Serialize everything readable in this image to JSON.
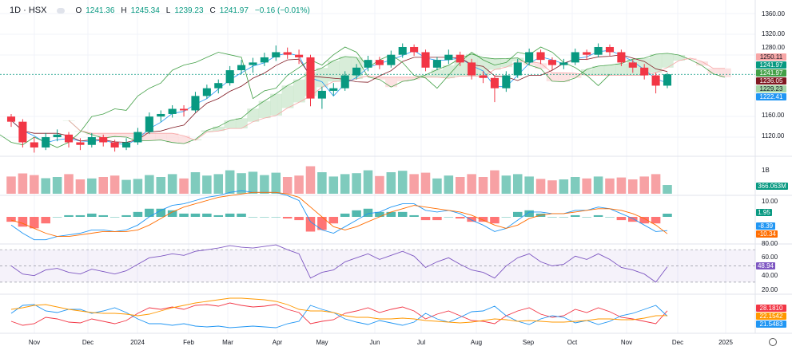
{
  "header": {
    "interval": "1D",
    "exchange": "HSX",
    "o_label": "O",
    "o": "1241.36",
    "h_label": "H",
    "h": "1245.34",
    "l_label": "L",
    "l": "1239.23",
    "c_label": "C",
    "c": "1241.97",
    "change": "−0.16 (−0.01%)"
  },
  "price_axis": {
    "ticks": [
      "1360.00",
      "1320.00",
      "1280.00",
      "1160.00",
      "1120.00"
    ]
  },
  "price_tags": [
    {
      "value": "1250.11",
      "color": "#f7a6a6",
      "text": "#131722"
    },
    {
      "value": "1241.97",
      "color": "#089981",
      "text": "#ffffff"
    },
    {
      "value": "1241.97",
      "color": "#43a047",
      "text": "#ffffff"
    },
    {
      "value": "1236.05",
      "color": "#801922",
      "text": "#ffffff"
    },
    {
      "value": "1229.23",
      "color": "#a5d6a7",
      "text": "#131722"
    },
    {
      "value": "1222.41",
      "color": "#2196f3",
      "text": "#ffffff"
    }
  ],
  "volume": {
    "tick": "1B",
    "last": "366.063M",
    "up_color": "#7fcbbd",
    "down_color": "#f7a1a4"
  },
  "macd": {
    "tick": "10.00",
    "hist_label": "1.95",
    "macd_label": "-8.39",
    "signal_label": "-10.34",
    "macd_color": "#2196f3",
    "signal_color": "#ff6d00"
  },
  "rsi": {
    "ticks": [
      "80.00",
      "60.00",
      "40.00",
      "20.00"
    ],
    "last": "48.94",
    "color": "#7e57c2",
    "upper": 70,
    "lower": 30,
    "mid": 50
  },
  "dmi": {
    "plus_label": "28.1810",
    "adx_label": "22.1542",
    "minus_label": "21.5483",
    "plus_color": "#f23645",
    "adx_color": "#ff9800",
    "minus_color": "#2196f3"
  },
  "time_axis": [
    "Nov",
    "Dec",
    "2024",
    "Feb",
    "Mar",
    "Apr",
    "May",
    "Jun",
    "Jul",
    "Aug",
    "Sep",
    "Oct",
    "Nov",
    "Dec",
    "2025"
  ],
  "colors": {
    "up": "#089981",
    "down": "#f23645",
    "cloud_up": "#c8e6c9",
    "cloud_down": "#fbd6d6"
  },
  "chart_data": {
    "type": "candlestick",
    "price_range": [
      1080,
      1370
    ],
    "candles": [
      [
        1160,
        1165,
        1140,
        1150
      ],
      [
        1150,
        1155,
        1100,
        1110
      ],
      [
        1110,
        1120,
        1090,
        1100
      ],
      [
        1100,
        1128,
        1095,
        1120
      ],
      [
        1120,
        1135,
        1112,
        1125
      ],
      [
        1125,
        1130,
        1100,
        1110
      ],
      [
        1110,
        1118,
        1095,
        1105
      ],
      [
        1105,
        1128,
        1100,
        1120
      ],
      [
        1120,
        1125,
        1102,
        1110
      ],
      [
        1110,
        1115,
        1092,
        1100
      ],
      [
        1100,
        1118,
        1095,
        1110
      ],
      [
        1110,
        1138,
        1105,
        1130
      ],
      [
        1130,
        1168,
        1126,
        1160
      ],
      [
        1160,
        1172,
        1150,
        1165
      ],
      [
        1165,
        1182,
        1158,
        1175
      ],
      [
        1175,
        1182,
        1160,
        1172
      ],
      [
        1172,
        1208,
        1168,
        1200
      ],
      [
        1200,
        1222,
        1195,
        1215
      ],
      [
        1215,
        1232,
        1205,
        1225
      ],
      [
        1225,
        1258,
        1220,
        1250
      ],
      [
        1250,
        1270,
        1242,
        1260
      ],
      [
        1260,
        1274,
        1245,
        1265
      ],
      [
        1265,
        1284,
        1258,
        1275
      ],
      [
        1275,
        1298,
        1268,
        1285
      ],
      [
        1285,
        1294,
        1272,
        1280
      ],
      [
        1280,
        1290,
        1262,
        1275
      ],
      [
        1275,
        1280,
        1180,
        1195
      ],
      [
        1195,
        1218,
        1175,
        1210
      ],
      [
        1210,
        1225,
        1200,
        1215
      ],
      [
        1215,
        1248,
        1210,
        1240
      ],
      [
        1240,
        1262,
        1232,
        1255
      ],
      [
        1255,
        1278,
        1248,
        1270
      ],
      [
        1270,
        1276,
        1252,
        1260
      ],
      [
        1260,
        1288,
        1255,
        1280
      ],
      [
        1280,
        1302,
        1274,
        1295
      ],
      [
        1295,
        1300,
        1278,
        1285
      ],
      [
        1285,
        1290,
        1248,
        1255
      ],
      [
        1255,
        1276,
        1250,
        1270
      ],
      [
        1270,
        1290,
        1262,
        1280
      ],
      [
        1280,
        1286,
        1258,
        1265
      ],
      [
        1265,
        1272,
        1232,
        1240
      ],
      [
        1240,
        1248,
        1225,
        1235
      ],
      [
        1235,
        1240,
        1188,
        1215
      ],
      [
        1215,
        1248,
        1208,
        1240
      ],
      [
        1240,
        1272,
        1235,
        1265
      ],
      [
        1265,
        1292,
        1260,
        1285
      ],
      [
        1285,
        1290,
        1262,
        1270
      ],
      [
        1270,
        1275,
        1250,
        1260
      ],
      [
        1260,
        1272,
        1252,
        1265
      ],
      [
        1265,
        1292,
        1260,
        1285
      ],
      [
        1285,
        1290,
        1270,
        1280
      ],
      [
        1280,
        1302,
        1275,
        1295
      ],
      [
        1295,
        1300,
        1278,
        1285
      ],
      [
        1285,
        1290,
        1258,
        1265
      ],
      [
        1265,
        1270,
        1245,
        1255
      ],
      [
        1255,
        1262,
        1232,
        1240
      ],
      [
        1240,
        1245,
        1205,
        1220
      ],
      [
        1220,
        1245,
        1215,
        1241.97
      ]
    ],
    "volume_m": [
      720,
      850,
      780,
      650,
      700,
      820,
      600,
      640,
      700,
      760,
      580,
      620,
      780,
      700,
      820,
      640,
      900,
      760,
      820,
      980,
      860,
      920,
      780,
      880,
      700,
      760,
      1150,
      900,
      720,
      820,
      860,
      980,
      740,
      900,
      960,
      820,
      880,
      640,
      760,
      700,
      820,
      700,
      980,
      760,
      820,
      720,
      620,
      560,
      600,
      700,
      640,
      720,
      640,
      680,
      600,
      720,
      820,
      366.063
    ],
    "macd": [
      -5,
      -10,
      -14,
      -14,
      -12,
      -11,
      -10,
      -8,
      -8,
      -9,
      -8,
      -5,
      0,
      4,
      7,
      8,
      10,
      12,
      13,
      15,
      16,
      15,
      15,
      15,
      13,
      10,
      -3,
      -8,
      -10,
      -6,
      -2,
      2,
      3,
      6,
      8,
      8,
      4,
      3,
      4,
      2,
      -2,
      -5,
      -9,
      -7,
      -2,
      3,
      3,
      2,
      2,
      4,
      4,
      6,
      5,
      2,
      -1,
      -5,
      -9,
      -8.39
    ],
    "signal": [
      -2,
      -4,
      -7,
      -10,
      -12,
      -12,
      -11,
      -10,
      -9,
      -9,
      -9,
      -8,
      -5,
      -1,
      3,
      6,
      8,
      10,
      12,
      13,
      14,
      15,
      15,
      15,
      14,
      12,
      6,
      0,
      -6,
      -8,
      -6,
      -3,
      0,
      3,
      5,
      7,
      6,
      5,
      4,
      3,
      1,
      -2,
      -5,
      -7,
      -5,
      -1,
      1,
      2,
      2,
      3,
      4,
      5,
      5,
      4,
      2,
      -1,
      -5,
      -10.34
    ],
    "rsi": [
      50,
      40,
      38,
      45,
      47,
      42,
      40,
      46,
      43,
      40,
      44,
      52,
      60,
      62,
      65,
      63,
      68,
      70,
      72,
      75,
      73,
      72,
      74,
      76,
      70,
      65,
      35,
      42,
      45,
      55,
      60,
      65,
      58,
      63,
      68,
      62,
      48,
      55,
      60,
      52,
      45,
      42,
      35,
      50,
      60,
      65,
      55,
      50,
      52,
      62,
      58,
      65,
      58,
      48,
      45,
      40,
      30,
      48.94
    ],
    "plus_di": [
      15,
      10,
      12,
      20,
      18,
      14,
      13,
      18,
      15,
      12,
      16,
      25,
      32,
      30,
      33,
      30,
      35,
      36,
      34,
      38,
      35,
      33,
      34,
      36,
      30,
      26,
      12,
      15,
      17,
      25,
      28,
      32,
      26,
      30,
      33,
      28,
      18,
      24,
      28,
      22,
      16,
      15,
      12,
      22,
      28,
      32,
      24,
      20,
      22,
      30,
      26,
      32,
      27,
      20,
      18,
      15,
      12,
      28.181
    ],
    "minus_di": [
      25,
      35,
      36,
      28,
      26,
      30,
      30,
      25,
      28,
      32,
      26,
      18,
      12,
      12,
      10,
      12,
      9,
      8,
      9,
      7,
      8,
      9,
      8,
      7,
      12,
      15,
      35,
      30,
      26,
      18,
      14,
      11,
      16,
      13,
      10,
      14,
      25,
      18,
      14,
      20,
      27,
      28,
      34,
      22,
      15,
      11,
      18,
      22,
      20,
      13,
      16,
      11,
      15,
      22,
      25,
      30,
      35,
      21.5483
    ],
    "adx": [
      30,
      32,
      35,
      36,
      33,
      30,
      28,
      26,
      25,
      25,
      24,
      22,
      24,
      28,
      32,
      35,
      38,
      40,
      42,
      44,
      44,
      43,
      42,
      40,
      36,
      30,
      28,
      28,
      26,
      22,
      20,
      20,
      18,
      18,
      19,
      18,
      16,
      15,
      14,
      13,
      14,
      16,
      18,
      17,
      15,
      16,
      15,
      14,
      14,
      15,
      16,
      18,
      18,
      17,
      17,
      19,
      22,
      22.1542
    ]
  }
}
